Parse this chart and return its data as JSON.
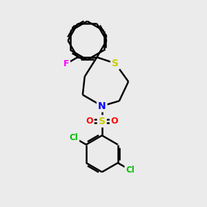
{
  "bg_color": "#ebebeb",
  "atom_colors": {
    "S_ring": "#cccc00",
    "S_sulfonyl": "#cccc00",
    "N": "#0000ff",
    "F": "#ff00ff",
    "Cl": "#00bb00",
    "O": "#ff0000",
    "C": "#000000"
  },
  "bond_color": "#000000",
  "bond_width": 1.8,
  "font_size": 9,
  "figsize": [
    3.0,
    3.0
  ],
  "dpi": 100,
  "xlim": [
    0,
    10
  ],
  "ylim": [
    0,
    10
  ]
}
